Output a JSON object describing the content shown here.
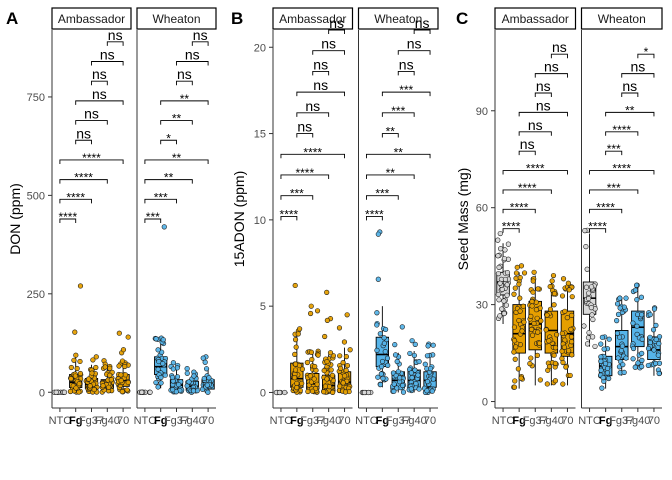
{
  "figure": {
    "strip_labels": [
      "Ambassador",
      "Wheaton"
    ],
    "groups": [
      "NTC",
      "Fg",
      "Fg37",
      "Fg40",
      "Fg70"
    ],
    "tick_label_display": [
      "NTC",
      "Fg",
      "Fg37",
      "Fg40",
      "70"
    ],
    "bold_group": "Fg",
    "colors": {
      "NTC": "#d9d9d9",
      "Ambassador": "#e69f00",
      "Wheaton": "#56b4e9",
      "outline": "#000000",
      "axis": "#333333"
    }
  },
  "chart_data": [
    {
      "panel_letter": "A",
      "type": "box",
      "ylabel": "DON (ppm)",
      "ylim": [
        -40,
        920
      ],
      "yticks": [
        0,
        250,
        500,
        750
      ],
      "whisker_top_ratio": 2.1,
      "series": [
        {
          "name": "Ambassador",
          "groups": {
            "NTC": {
              "q1": 0,
              "median": 0,
              "q3": 0,
              "whisker": [
                0,
                0
              ],
              "max": 0,
              "n": 8
            },
            "Fg": {
              "q1": 12,
              "median": 25,
              "q3": 45,
              "whisker": [
                0,
                95
              ],
              "max": 270,
              "n": 40
            },
            "Fg37": {
              "q1": 10,
              "median": 20,
              "q3": 35,
              "whisker": [
                0,
                70
              ],
              "max": 90,
              "n": 40
            },
            "Fg40": {
              "q1": 10,
              "median": 20,
              "q3": 32,
              "whisker": [
                0,
                65
              ],
              "max": 80,
              "n": 40
            },
            "Fg70": {
              "q1": 15,
              "median": 30,
              "q3": 45,
              "whisker": [
                0,
                85
              ],
              "max": 150,
              "n": 40
            }
          }
        },
        {
          "name": "Wheaton",
          "groups": {
            "NTC": {
              "q1": 0,
              "median": 0,
              "q3": 0,
              "whisker": [
                0,
                0
              ],
              "max": 0,
              "n": 8
            },
            "Fg": {
              "q1": 45,
              "median": 65,
              "q3": 90,
              "whisker": [
                10,
                140
              ],
              "max": 420,
              "n": 30
            },
            "Fg37": {
              "q1": 8,
              "median": 18,
              "q3": 32,
              "whisker": [
                0,
                60
              ],
              "max": 75,
              "n": 30
            },
            "Fg40": {
              "q1": 5,
              "median": 15,
              "q3": 28,
              "whisker": [
                0,
                55
              ],
              "max": 60,
              "n": 30
            },
            "Fg70": {
              "q1": 8,
              "median": 18,
              "q3": 32,
              "whisker": [
                0,
                60
              ],
              "max": 90,
              "n": 30
            }
          }
        }
      ],
      "comparisons": {
        "Ambassador": [
          {
            "groups": [
              "NTC",
              "Fg"
            ],
            "y": 440,
            "label": "****"
          },
          {
            "groups": [
              "NTC",
              "Fg37"
            ],
            "y": 490,
            "label": "****"
          },
          {
            "groups": [
              "NTC",
              "Fg40"
            ],
            "y": 540,
            "label": "****"
          },
          {
            "groups": [
              "NTC",
              "Fg70"
            ],
            "y": 590,
            "label": "****"
          },
          {
            "groups": [
              "Fg",
              "Fg37"
            ],
            "y": 640,
            "label": "ns"
          },
          {
            "groups": [
              "Fg",
              "Fg40"
            ],
            "y": 690,
            "label": "ns"
          },
          {
            "groups": [
              "Fg",
              "Fg70"
            ],
            "y": 740,
            "label": "ns"
          },
          {
            "groups": [
              "Fg37",
              "Fg40"
            ],
            "y": 790,
            "label": "ns"
          },
          {
            "groups": [
              "Fg37",
              "Fg70"
            ],
            "y": 840,
            "label": "ns"
          },
          {
            "groups": [
              "Fg40",
              "Fg70"
            ],
            "y": 890,
            "label": "ns"
          }
        ],
        "Wheaton": [
          {
            "groups": [
              "NTC",
              "Fg"
            ],
            "y": 440,
            "label": "***"
          },
          {
            "groups": [
              "NTC",
              "Fg37"
            ],
            "y": 490,
            "label": "***"
          },
          {
            "groups": [
              "NTC",
              "Fg40"
            ],
            "y": 540,
            "label": "**"
          },
          {
            "groups": [
              "NTC",
              "Fg70"
            ],
            "y": 590,
            "label": "**"
          },
          {
            "groups": [
              "Fg",
              "Fg37"
            ],
            "y": 640,
            "label": "*"
          },
          {
            "groups": [
              "Fg",
              "Fg40"
            ],
            "y": 690,
            "label": "**"
          },
          {
            "groups": [
              "Fg",
              "Fg70"
            ],
            "y": 740,
            "label": "**"
          },
          {
            "groups": [
              "Fg37",
              "Fg40"
            ],
            "y": 790,
            "label": "ns"
          },
          {
            "groups": [
              "Fg37",
              "Fg70"
            ],
            "y": 840,
            "label": "ns"
          },
          {
            "groups": [
              "Fg40",
              "Fg70"
            ],
            "y": 890,
            "label": "ns"
          }
        ]
      }
    },
    {
      "panel_letter": "B",
      "type": "box",
      "ylabel": "15ADON (ppm)",
      "ylim": [
        -0.9,
        21
      ],
      "yticks": [
        0,
        5,
        10,
        15,
        20
      ],
      "whisker_top_ratio": 1.8,
      "series": [
        {
          "name": "Ambassador",
          "groups": {
            "NTC": {
              "q1": 0,
              "median": 0,
              "q3": 0,
              "whisker": [
                0,
                0
              ],
              "max": 0,
              "n": 8
            },
            "Fg": {
              "q1": 0.3,
              "median": 0.8,
              "q3": 1.7,
              "whisker": [
                0,
                3.6
              ],
              "max": 6.2,
              "n": 40
            },
            "Fg37": {
              "q1": 0.2,
              "median": 0.5,
              "q3": 1.1,
              "whisker": [
                0,
                2.4
              ],
              "max": 5.0,
              "n": 40
            },
            "Fg40": {
              "q1": 0.1,
              "median": 0.4,
              "q3": 1.0,
              "whisker": [
                0,
                2.2
              ],
              "max": 5.8,
              "n": 40
            },
            "Fg70": {
              "q1": 0.2,
              "median": 0.6,
              "q3": 1.2,
              "whisker": [
                0,
                2.6
              ],
              "max": 4.5,
              "n": 40
            }
          }
        },
        {
          "name": "Wheaton",
          "groups": {
            "NTC": {
              "q1": 0,
              "median": 0,
              "q3": 0,
              "whisker": [
                0,
                0
              ],
              "max": 0,
              "n": 8
            },
            "Fg": {
              "q1": 1.5,
              "median": 2.2,
              "q3": 3.2,
              "whisker": [
                0.3,
                5
              ],
              "max": 9.3,
              "n": 30
            },
            "Fg37": {
              "q1": 0.3,
              "median": 0.7,
              "q3": 1.2,
              "whisker": [
                0,
                2.3
              ],
              "max": 3.8,
              "n": 30
            },
            "Fg40": {
              "q1": 0.3,
              "median": 0.7,
              "q3": 1.3,
              "whisker": [
                0,
                2.4
              ],
              "max": 3.0,
              "n": 30
            },
            "Fg70": {
              "q1": 0.3,
              "median": 0.7,
              "q3": 1.2,
              "whisker": [
                0,
                2.3
              ],
              "max": 2.8,
              "n": 30
            }
          }
        }
      ],
      "comparisons": {
        "Ambassador": [
          {
            "groups": [
              "NTC",
              "Fg"
            ],
            "y": 10.2,
            "label": "****"
          },
          {
            "groups": [
              "NTC",
              "Fg37"
            ],
            "y": 11.4,
            "label": "***"
          },
          {
            "groups": [
              "NTC",
              "Fg40"
            ],
            "y": 12.6,
            "label": "****"
          },
          {
            "groups": [
              "NTC",
              "Fg70"
            ],
            "y": 13.8,
            "label": "****"
          },
          {
            "groups": [
              "Fg",
              "Fg37"
            ],
            "y": 15.0,
            "label": "ns"
          },
          {
            "groups": [
              "Fg",
              "Fg40"
            ],
            "y": 16.2,
            "label": "ns"
          },
          {
            "groups": [
              "Fg",
              "Fg70"
            ],
            "y": 17.4,
            "label": "ns"
          },
          {
            "groups": [
              "Fg37",
              "Fg40"
            ],
            "y": 18.6,
            "label": "ns"
          },
          {
            "groups": [
              "Fg37",
              "Fg70"
            ],
            "y": 19.8,
            "label": "ns"
          },
          {
            "groups": [
              "Fg40",
              "Fg70"
            ],
            "y": 21.0,
            "label": "ns"
          }
        ],
        "Wheaton": [
          {
            "groups": [
              "NTC",
              "Fg"
            ],
            "y": 10.2,
            "label": "****"
          },
          {
            "groups": [
              "NTC",
              "Fg37"
            ],
            "y": 11.4,
            "label": "***"
          },
          {
            "groups": [
              "NTC",
              "Fg40"
            ],
            "y": 12.6,
            "label": "**"
          },
          {
            "groups": [
              "NTC",
              "Fg70"
            ],
            "y": 13.8,
            "label": "**"
          },
          {
            "groups": [
              "Fg",
              "Fg37"
            ],
            "y": 15.0,
            "label": "**"
          },
          {
            "groups": [
              "Fg",
              "Fg40"
            ],
            "y": 16.2,
            "label": "***"
          },
          {
            "groups": [
              "Fg",
              "Fg70"
            ],
            "y": 17.4,
            "label": "***"
          },
          {
            "groups": [
              "Fg37",
              "Fg40"
            ],
            "y": 18.6,
            "label": "ns"
          },
          {
            "groups": [
              "Fg37",
              "Fg70"
            ],
            "y": 19.8,
            "label": "ns"
          },
          {
            "groups": [
              "Fg40",
              "Fg70"
            ],
            "y": 21.0,
            "label": "ns"
          }
        ]
      }
    },
    {
      "panel_letter": "C",
      "type": "box",
      "ylabel": "Seed Mass (mg)",
      "ylim": [
        -2,
        115
      ],
      "yticks": [
        0,
        30,
        60,
        90
      ],
      "whisker_top_ratio": 1.5,
      "series": [
        {
          "name": "Ambassador",
          "groups": {
            "NTC": {
              "q1": 33,
              "median": 37,
              "q3": 40,
              "whisker": [
                24,
                49
              ],
              "max": 52,
              "n": 40
            },
            "Fg": {
              "q1": 15,
              "median": 21,
              "q3": 30,
              "whisker": [
                4,
                40
              ],
              "max": 42,
              "n": 40
            },
            "Fg37": {
              "q1": 16,
              "median": 24,
              "q3": 31,
              "whisker": [
                5,
                39
              ],
              "max": 40,
              "n": 40
            },
            "Fg40": {
              "q1": 15,
              "median": 22,
              "q3": 28,
              "whisker": [
                5,
                37
              ],
              "max": 39,
              "n": 40
            },
            "Fg70": {
              "q1": 14,
              "median": 21,
              "q3": 28,
              "whisker": [
                5,
                36
              ],
              "max": 38,
              "n": 40
            }
          }
        },
        {
          "name": "Wheaton",
          "groups": {
            "NTC": {
              "q1": 27,
              "median": 32,
              "q3": 37,
              "whisker": [
                17,
                52
              ],
              "max": 53,
              "n": 30
            },
            "Fg": {
              "q1": 8,
              "median": 11,
              "q3": 14,
              "whisker": [
                4,
                19
              ],
              "max": 20,
              "n": 30
            },
            "Fg37": {
              "q1": 13,
              "median": 17,
              "q3": 22,
              "whisker": [
                8,
                32
              ],
              "max": 32,
              "n": 30
            },
            "Fg40": {
              "q1": 17,
              "median": 23,
              "q3": 28,
              "whisker": [
                10,
                36
              ],
              "max": 36,
              "n": 30
            },
            "Fg70": {
              "q1": 13,
              "median": 16,
              "q3": 20,
              "whisker": [
                8,
                28
              ],
              "max": 29,
              "n": 30
            }
          }
        }
      ],
      "comparisons": {
        "Ambassador": [
          {
            "groups": [
              "NTC",
              "Fg"
            ],
            "y": 53.5,
            "label": "****"
          },
          {
            "groups": [
              "NTC",
              "Fg37"
            ],
            "y": 59.5,
            "label": "****"
          },
          {
            "groups": [
              "NTC",
              "Fg40"
            ],
            "y": 65.5,
            "label": "****"
          },
          {
            "groups": [
              "NTC",
              "Fg70"
            ],
            "y": 71.5,
            "label": "****"
          },
          {
            "groups": [
              "Fg",
              "Fg37"
            ],
            "y": 77.5,
            "label": "ns"
          },
          {
            "groups": [
              "Fg",
              "Fg40"
            ],
            "y": 83.5,
            "label": "ns"
          },
          {
            "groups": [
              "Fg",
              "Fg70"
            ],
            "y": 89.5,
            "label": "ns"
          },
          {
            "groups": [
              "Fg37",
              "Fg40"
            ],
            "y": 95.5,
            "label": "ns"
          },
          {
            "groups": [
              "Fg37",
              "Fg70"
            ],
            "y": 101.5,
            "label": "ns"
          },
          {
            "groups": [
              "Fg40",
              "Fg70"
            ],
            "y": 107.5,
            "label": "ns"
          }
        ],
        "Wheaton": [
          {
            "groups": [
              "NTC",
              "Fg"
            ],
            "y": 53.5,
            "label": "****"
          },
          {
            "groups": [
              "NTC",
              "Fg37"
            ],
            "y": 59.5,
            "label": "****"
          },
          {
            "groups": [
              "NTC",
              "Fg40"
            ],
            "y": 65.5,
            "label": "***"
          },
          {
            "groups": [
              "NTC",
              "Fg70"
            ],
            "y": 71.5,
            "label": "****"
          },
          {
            "groups": [
              "Fg",
              "Fg37"
            ],
            "y": 77.5,
            "label": "***"
          },
          {
            "groups": [
              "Fg",
              "Fg40"
            ],
            "y": 83.5,
            "label": "****"
          },
          {
            "groups": [
              "Fg",
              "Fg70"
            ],
            "y": 89.5,
            "label": "**"
          },
          {
            "groups": [
              "Fg37",
              "Fg40"
            ],
            "y": 95.5,
            "label": "ns"
          },
          {
            "groups": [
              "Fg37",
              "Fg70"
            ],
            "y": 101.5,
            "label": "ns"
          },
          {
            "groups": [
              "Fg40",
              "Fg70"
            ],
            "y": 107.5,
            "label": "*"
          }
        ]
      }
    }
  ]
}
